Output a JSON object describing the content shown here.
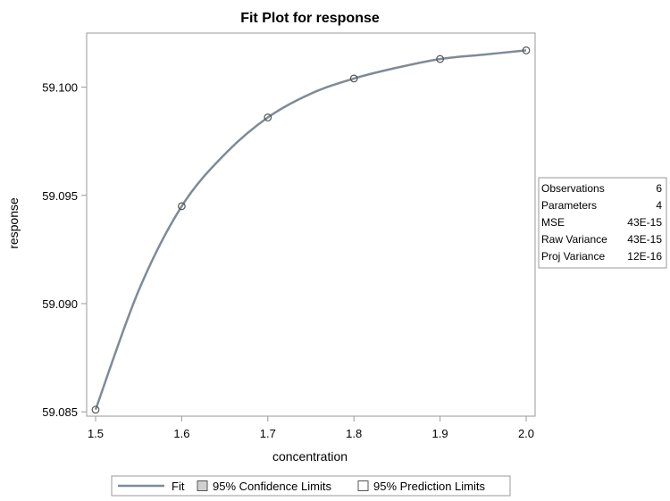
{
  "chart_data": {
    "type": "line",
    "title": "Fit Plot for response",
    "xlabel": "concentration",
    "ylabel": "response",
    "xlim": [
      1.5,
      2.0
    ],
    "ylim": [
      59.0848,
      59.1025
    ],
    "x_ticks": [
      1.5,
      1.6,
      1.7,
      1.8,
      1.9,
      2.0
    ],
    "x_tick_labels": [
      "1.5",
      "1.6",
      "1.7",
      "1.8",
      "1.9",
      "2.0"
    ],
    "y_ticks": [
      59.085,
      59.09,
      59.095,
      59.1
    ],
    "y_tick_labels": [
      "59.085",
      "59.090",
      "59.095",
      "59.100"
    ],
    "grid": false,
    "series": [
      {
        "name": "Fit",
        "kind": "line",
        "color": "#7f8a99",
        "x": [
          1.5,
          1.55,
          1.6,
          1.65,
          1.7,
          1.75,
          1.8,
          1.85,
          1.9,
          1.95,
          2.0
        ],
        "y": [
          59.0851,
          59.0906,
          59.0945,
          59.0969,
          59.0986,
          59.0997,
          59.1004,
          59.1009,
          59.1013,
          59.1015,
          59.1017
        ]
      },
      {
        "name": "observations",
        "kind": "scatter",
        "color": "#555555",
        "x": [
          1.5,
          1.6,
          1.7,
          1.8,
          1.9,
          2.0
        ],
        "y": [
          59.0851,
          59.0945,
          59.0986,
          59.1004,
          59.1013,
          59.1017
        ]
      }
    ],
    "legend": {
      "position": "bottom",
      "items": [
        {
          "label": "Fit",
          "symbol": "line"
        },
        {
          "label": "95% Confidence Limits",
          "symbol": "box"
        },
        {
          "label": "95% Prediction Limits",
          "symbol": "box"
        }
      ]
    },
    "stats_table": {
      "position": "right",
      "rows": [
        {
          "label": "Observations",
          "value": "6"
        },
        {
          "label": "Parameters",
          "value": "4"
        },
        {
          "label": "MSE",
          "value": "43E-15"
        },
        {
          "label": "Raw Variance",
          "value": "43E-15"
        },
        {
          "label": "Proj Variance",
          "value": "12E-16"
        }
      ]
    }
  }
}
